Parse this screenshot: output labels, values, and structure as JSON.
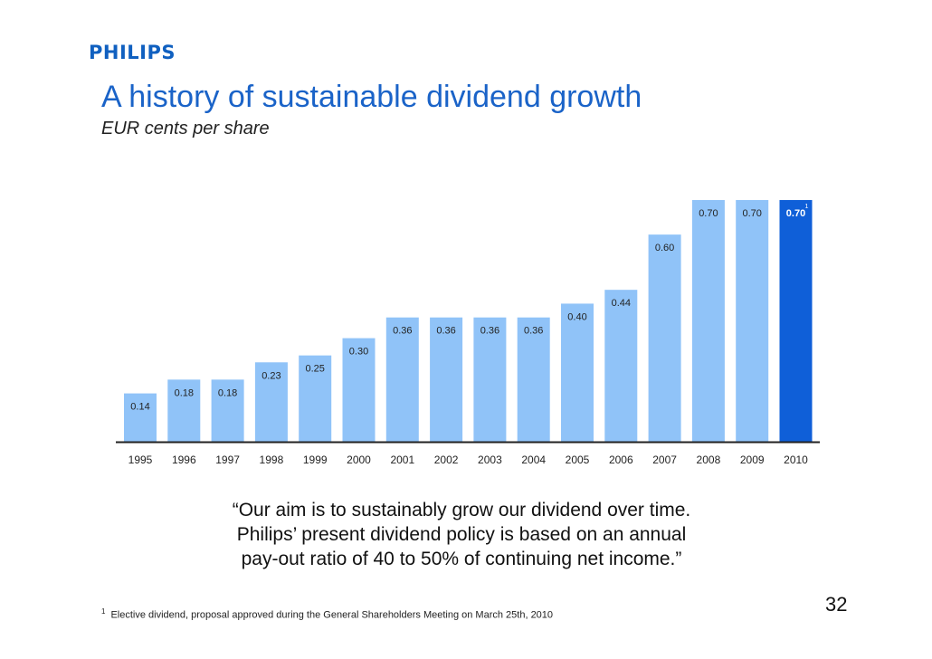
{
  "logo": "PHILIPS",
  "title": "A history of sustainable dividend growth",
  "subtitle": "EUR cents per share",
  "chart_data": {
    "type": "bar",
    "categories": [
      "1995",
      "1996",
      "1997",
      "1998",
      "1999",
      "2000",
      "2001",
      "2002",
      "2003",
      "2004",
      "2005",
      "2006",
      "2007",
      "2008",
      "2009",
      "2010"
    ],
    "values": [
      0.14,
      0.18,
      0.18,
      0.23,
      0.25,
      0.3,
      0.36,
      0.36,
      0.36,
      0.36,
      0.4,
      0.44,
      0.6,
      0.7,
      0.7,
      0.7
    ],
    "labels": [
      "0.14",
      "0.18",
      "0.18",
      "0.23",
      "0.25",
      "0.30",
      "0.36",
      "0.36",
      "0.36",
      "0.36",
      "0.40",
      "0.44",
      "0.60",
      "0.70",
      "0.70",
      "0.70"
    ],
    "highlight_index": 15,
    "highlight_footnote_marker": "1",
    "ylim": [
      0,
      0.7
    ],
    "grid": false,
    "colors": {
      "bar": "#90c3f8",
      "highlight": "#0f5fd8",
      "axis": "#222222",
      "label": "#222222",
      "highlight_label": "#ffffff"
    }
  },
  "quote": {
    "lines": [
      "“Our aim is to sustainably grow our dividend over time.",
      "Philips’ present dividend policy is based on an annual",
      "pay-out ratio of 40 to 50% of continuing net income.”"
    ]
  },
  "footnote": {
    "marker": "1",
    "text": "Elective dividend, proposal approved during the General Shareholders Meeting on March 25th, 2010"
  },
  "page_number": "32"
}
